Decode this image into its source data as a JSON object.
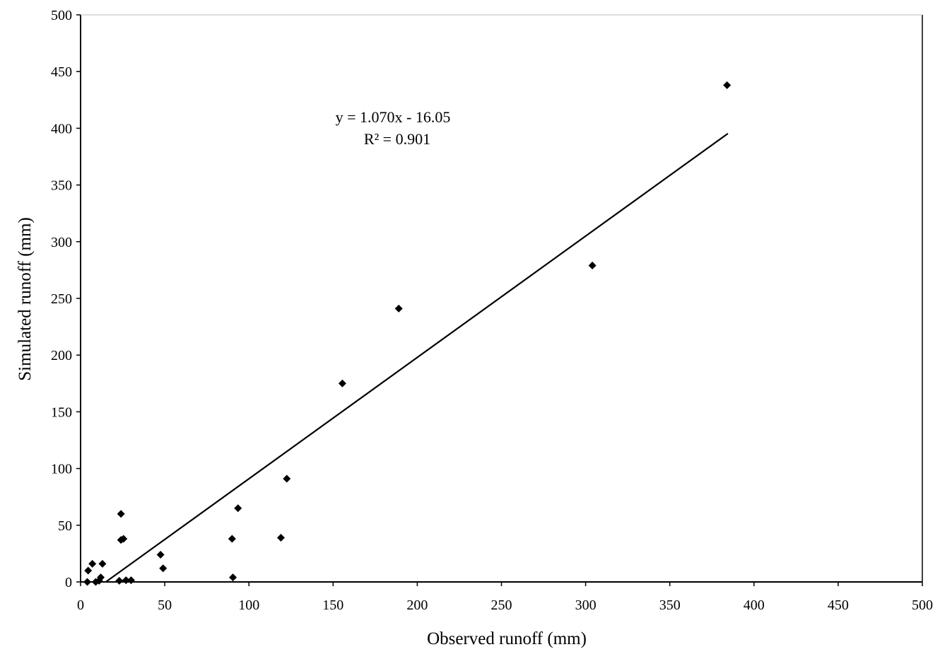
{
  "chart_data": {
    "type": "scatter",
    "xlabel": "Observed runoff (mm)",
    "ylabel": "Simulated runoff (mm)",
    "xlim": [
      0,
      500
    ],
    "ylim": [
      0,
      500
    ],
    "xticks": [
      0,
      50,
      100,
      150,
      200,
      250,
      300,
      350,
      400,
      450,
      500
    ],
    "yticks": [
      0,
      50,
      100,
      150,
      200,
      250,
      300,
      350,
      400,
      450,
      500
    ],
    "grid": false,
    "marker": "diamond",
    "marker_color": "#000000",
    "series": [
      {
        "points": [
          {
            "x": 4,
            "y": 0
          },
          {
            "x": 4.5,
            "y": 10
          },
          {
            "x": 7,
            "y": 16
          },
          {
            "x": 9,
            "y": 0
          },
          {
            "x": 11,
            "y": 1
          },
          {
            "x": 12,
            "y": 4
          },
          {
            "x": 13,
            "y": 16
          },
          {
            "x": 23,
            "y": 1
          },
          {
            "x": 24,
            "y": 60
          },
          {
            "x": 24,
            "y": 37
          },
          {
            "x": 25.5,
            "y": 38
          },
          {
            "x": 27,
            "y": 1.5
          },
          {
            "x": 30,
            "y": 1.5
          },
          {
            "x": 47.5,
            "y": 24
          },
          {
            "x": 49,
            "y": 12
          },
          {
            "x": 90,
            "y": 38
          },
          {
            "x": 90.5,
            "y": 4
          },
          {
            "x": 93.5,
            "y": 65
          },
          {
            "x": 119,
            "y": 39
          },
          {
            "x": 122.5,
            "y": 91
          },
          {
            "x": 155.5,
            "y": 175
          },
          {
            "x": 189,
            "y": 241
          },
          {
            "x": 304,
            "y": 279
          },
          {
            "x": 384,
            "y": 438
          }
        ]
      }
    ],
    "trendline": {
      "slope": 1.07,
      "intercept": -16.05,
      "x_start": 15,
      "x_end": 384.5
    },
    "annotations": {
      "equation": "y = 1.070x - 16.05",
      "r_squared": "R² = 0.901"
    }
  }
}
